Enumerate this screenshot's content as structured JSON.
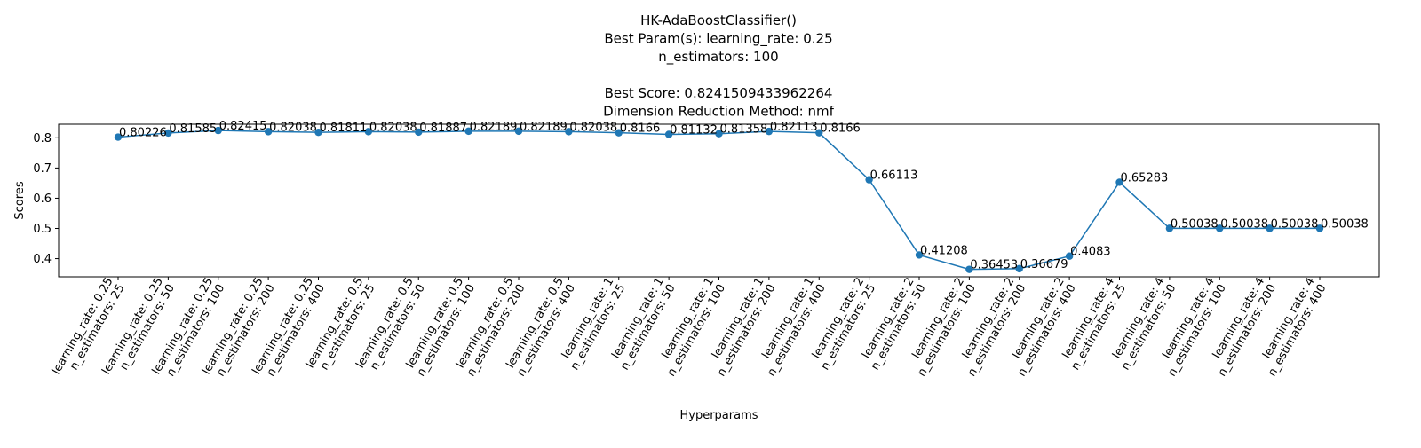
{
  "chart_data": {
    "type": "line",
    "title_lines": [
      "HK-AdaBoostClassifier()",
      "Best Param(s): learning_rate: 0.25",
      "n_estimators: 100",
      "",
      "Best Score: 0.8241509433962264",
      "Dimension Reduction Method: nmf"
    ],
    "xlabel": "Hyperparams",
    "ylabel": "Scores",
    "ylim": [
      0.34,
      0.845
    ],
    "yticks": [
      0.4,
      0.5,
      0.6,
      0.7,
      0.8
    ],
    "ytick_labels": [
      "0.4",
      "0.5",
      "0.6",
      "0.7",
      "0.8"
    ],
    "categories": [
      [
        "learning_rate: 0.25",
        "n_estimators: 25"
      ],
      [
        "learning_rate: 0.25",
        "n_estimators: 50"
      ],
      [
        "learning_rate: 0.25",
        "n_estimators: 100"
      ],
      [
        "learning_rate: 0.25",
        "n_estimators: 200"
      ],
      [
        "learning_rate: 0.25",
        "n_estimators: 400"
      ],
      [
        "learning_rate: 0.5",
        "n_estimators: 25"
      ],
      [
        "learning_rate: 0.5",
        "n_estimators: 50"
      ],
      [
        "learning_rate: 0.5",
        "n_estimators: 100"
      ],
      [
        "learning_rate: 0.5",
        "n_estimators: 200"
      ],
      [
        "learning_rate: 0.5",
        "n_estimators: 400"
      ],
      [
        "learning_rate: 1",
        "n_estimators: 25"
      ],
      [
        "learning_rate: 1",
        "n_estimators: 50"
      ],
      [
        "learning_rate: 1",
        "n_estimators: 100"
      ],
      [
        "learning_rate: 1",
        "n_estimators: 200"
      ],
      [
        "learning_rate: 1",
        "n_estimators: 400"
      ],
      [
        "learning_rate: 2",
        "n_estimators: 25"
      ],
      [
        "learning_rate: 2",
        "n_estimators: 50"
      ],
      [
        "learning_rate: 2",
        "n_estimators: 100"
      ],
      [
        "learning_rate: 2",
        "n_estimators: 200"
      ],
      [
        "learning_rate: 2",
        "n_estimators: 400"
      ],
      [
        "learning_rate: 4",
        "n_estimators: 25"
      ],
      [
        "learning_rate: 4",
        "n_estimators: 50"
      ],
      [
        "learning_rate: 4",
        "n_estimators: 100"
      ],
      [
        "learning_rate: 4",
        "n_estimators: 200"
      ],
      [
        "learning_rate: 4",
        "n_estimators: 400"
      ]
    ],
    "values": [
      0.80226,
      0.81585,
      0.82415,
      0.82038,
      0.81811,
      0.82038,
      0.81887,
      0.82189,
      0.82189,
      0.82038,
      0.8166,
      0.81132,
      0.81358,
      0.82113,
      0.8166,
      0.66113,
      0.41208,
      0.36453,
      0.36679,
      0.4083,
      0.65283,
      0.50038,
      0.50038,
      0.50038,
      0.50038
    ],
    "data_labels": [
      "0.80226",
      "0.81585",
      "0.82415",
      "0.82038",
      "0.81811",
      "0.82038",
      "0.81887",
      "0.82189",
      "0.82189",
      "0.82038",
      "0.8166",
      "0.81132",
      "0.81358",
      "0.82113",
      "0.8166",
      "0.66113",
      "0.41208",
      "0.36453",
      "0.36679",
      "0.4083",
      "0.65283",
      "0.50038",
      "0.50038",
      "0.50038",
      "0.50038"
    ],
    "line_color": "#1f77b4",
    "marker": "circle",
    "grid": false,
    "legend": "none"
  }
}
